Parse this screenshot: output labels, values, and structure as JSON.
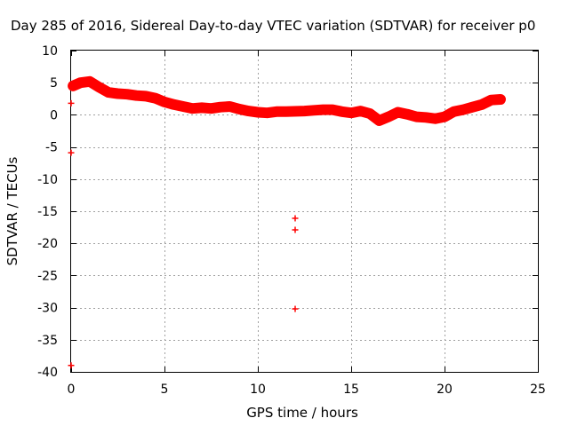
{
  "chart_data": {
    "type": "scatter",
    "title": "Day 285 of 2016, Sidereal Day-to-day VTEC variation (SDTVAR) for receiver p0",
    "xlabel": "GPS time / hours",
    "ylabel": "SDTVAR / TECUs",
    "xlim": [
      0,
      25
    ],
    "ylim": [
      -40,
      10
    ],
    "xticks": [
      0,
      5,
      10,
      15,
      20,
      25
    ],
    "yticks": [
      10,
      5,
      0,
      -5,
      -10,
      -15,
      -20,
      -25,
      -30,
      -35,
      -40
    ],
    "grid": true,
    "marker": "+",
    "color": "#ff0000",
    "series": [
      {
        "name": "SDTVAR",
        "x": [
          0.1,
          0.5,
          1.0,
          1.5,
          2.0,
          2.5,
          3.0,
          3.5,
          4.0,
          4.5,
          5.0,
          5.5,
          6.0,
          6.5,
          7.0,
          7.5,
          8.0,
          8.5,
          9.0,
          9.5,
          10.0,
          10.5,
          11.0,
          11.5,
          12.5,
          13.0,
          13.5,
          14.0,
          14.5,
          15.0,
          15.5,
          16.0,
          16.5,
          17.0,
          17.5,
          18.0,
          18.5,
          19.0,
          19.5,
          20.0,
          20.5,
          21.0,
          21.5,
          22.0,
          22.5,
          23.0
        ],
        "y": [
          4.5,
          5.0,
          5.2,
          4.3,
          3.5,
          3.3,
          3.2,
          3.0,
          2.9,
          2.6,
          2.0,
          1.6,
          1.3,
          1.0,
          1.1,
          1.0,
          1.2,
          1.3,
          0.9,
          0.6,
          0.4,
          0.3,
          0.5,
          0.5,
          0.6,
          0.7,
          0.8,
          0.8,
          0.5,
          0.3,
          0.6,
          0.2,
          -0.9,
          -0.3,
          0.4,
          0.1,
          -0.3,
          -0.4,
          -0.6,
          -0.3,
          0.5,
          0.8,
          1.2,
          1.6,
          2.3,
          2.4
        ]
      }
    ],
    "outliers": {
      "x": [
        12.0,
        12.0,
        12.0,
        0.0,
        0.0,
        0.0
      ],
      "y": [
        -16.1,
        -17.9,
        -30.2,
        -5.9,
        -39.0,
        1.8
      ]
    }
  }
}
